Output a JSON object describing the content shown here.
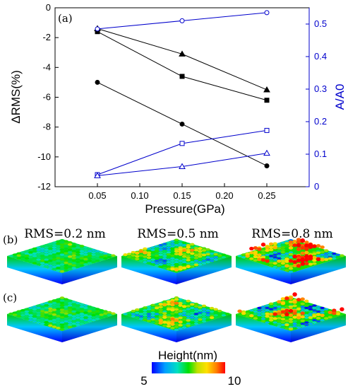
{
  "chart_data": {
    "type": "line",
    "panel_label": "(a)",
    "xlabel": "Pressure(GPa)",
    "ylabel": "ΔRMS(%)",
    "y2label": "A/A0",
    "x": [
      0.05,
      0.15,
      0.25
    ],
    "xlim": [
      0.0,
      0.3
    ],
    "ylim": [
      -12,
      0
    ],
    "y2lim": [
      0,
      0.55
    ],
    "x_ticks": [
      "0.05",
      "0.10",
      "0.15",
      "0.20",
      "0.25"
    ],
    "x_tick_values": [
      0.05,
      0.1,
      0.15,
      0.2,
      0.25
    ],
    "y_ticks": [
      "0",
      "-2",
      "-4",
      "-6",
      "-8",
      "-10",
      "-12"
    ],
    "y_tick_values": [
      0,
      -2,
      -4,
      -6,
      -8,
      -10,
      -12
    ],
    "y2_ticks": [
      "0",
      "0.1",
      "0.2",
      "0.3",
      "0.4",
      "0.5"
    ],
    "y2_tick_values": [
      0,
      0.1,
      0.2,
      0.3,
      0.4,
      0.5
    ],
    "series": [
      {
        "axis": "left",
        "marker": "triangle",
        "filled": true,
        "color": "#000000",
        "values": [
          -1.4,
          -3.1,
          -5.5
        ]
      },
      {
        "axis": "left",
        "marker": "square",
        "filled": true,
        "color": "#000000",
        "values": [
          -1.6,
          -4.6,
          -6.2
        ]
      },
      {
        "axis": "left",
        "marker": "circle",
        "filled": true,
        "color": "#000000",
        "values": [
          -5.0,
          -7.8,
          -10.6
        ]
      },
      {
        "axis": "right",
        "marker": "circle",
        "filled": false,
        "color": "#0000cc",
        "values": [
          0.485,
          0.51,
          0.535
        ]
      },
      {
        "axis": "right",
        "marker": "square",
        "filled": false,
        "color": "#0000cc",
        "values": [
          0.037,
          0.133,
          0.173
        ]
      },
      {
        "axis": "right",
        "marker": "triangle",
        "filled": false,
        "color": "#0000cc",
        "values": [
          0.034,
          0.062,
          0.103
        ]
      }
    ]
  },
  "panels": {
    "b_label": "(b)",
    "c_label": "(c)",
    "rms_labels": [
      "RMS=0.2 nm",
      "RMS=0.5 nm",
      "RMS=0.8 nm"
    ],
    "roughness": [
      0.2,
      0.5,
      0.8
    ]
  },
  "colorbar": {
    "title": "Height(nm)",
    "min_label": "5",
    "max_label": "10",
    "colors": [
      "#0000ff",
      "#00a0ff",
      "#00e0c0",
      "#00e000",
      "#c0e000",
      "#ffe000",
      "#ff8000",
      "#ff0000"
    ]
  }
}
